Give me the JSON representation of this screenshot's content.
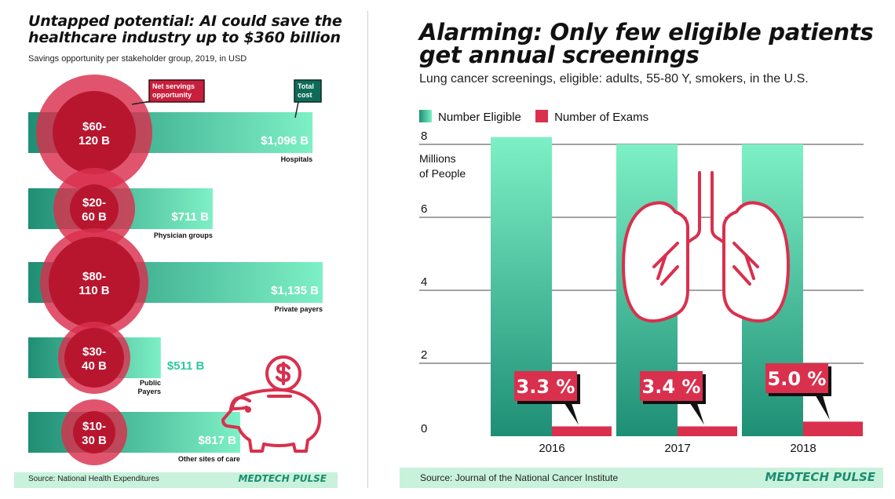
{
  "left": {
    "title_line1": "Untapped potential: AI could save the",
    "title_line2": "healthcare industry up to $360 billion",
    "subtitle": "Savings opportunity per stakeholder group, 2019, in USD",
    "callout_net": "Net servings opportunity",
    "callout_total": "Total cost",
    "source": "Source: National Health Expenditures",
    "brand": "MEDTECH PULSE"
  },
  "right": {
    "title_line1": "Alarming: Only few eligible patients",
    "title_line2": "get annual screenings",
    "subtitle": "Lung cancer screenings, eligible: adults, 55-80 Y, smokers, in the U.S.",
    "legend_eligible": "Number Eligible",
    "legend_exams": "Number of Exams",
    "ylabel": "Millions of People",
    "source": "Source: Journal of the National Cancer Institute",
    "brand": "MEDTECH PULSE"
  },
  "colors": {
    "teal_dark": "#1e8f75",
    "teal_light": "#7ef0c6",
    "red": "#d9304d",
    "red_dark": "#b8162f",
    "band": "#c8f2dc"
  },
  "icons": [
    "piggy-bank-icon",
    "lungs-icon"
  ],
  "chart_data": [
    {
      "type": "bar",
      "title": "Untapped potential: AI could save the healthcare industry up to $360 billion",
      "subtitle": "Savings opportunity per stakeholder group, 2019, in USD",
      "categories": [
        "Hospitals",
        "Physician groups",
        "Private payers",
        "Public Payers",
        "Other sites of care"
      ],
      "series": [
        {
          "name": "Total cost",
          "values": [
            1096,
            711,
            1135,
            511,
            817
          ],
          "labels": [
            "$1,096 B",
            "$711 B",
            "$1,135 B",
            "$511 B",
            "$817 B"
          ]
        },
        {
          "name": "Net servings opportunity",
          "labels": [
            "$60-120 B",
            "$20-60 B",
            "$80-110 B",
            "$30-40 B",
            "$10-30 B"
          ]
        }
      ]
    },
    {
      "type": "bar",
      "title": "Alarming: Only few eligible patients get annual screenings",
      "subtitle": "Lung cancer screenings, eligible: adults, 55-80 Y, smokers, in the U.S.",
      "ylabel": "Millions of People",
      "ylim": [
        0,
        8
      ],
      "yticks": [
        0,
        2,
        4,
        6,
        8
      ],
      "categories": [
        "2016",
        "2017",
        "2018"
      ],
      "series": [
        {
          "name": "Number Eligible",
          "values": [
            8.2,
            8.0,
            8.0
          ]
        },
        {
          "name": "Number of Exams",
          "values": [
            0.27,
            0.27,
            0.4
          ]
        }
      ],
      "annotations": [
        "3.3 %",
        "3.4 %",
        "5.0 %"
      ],
      "legend": "top-left"
    }
  ]
}
